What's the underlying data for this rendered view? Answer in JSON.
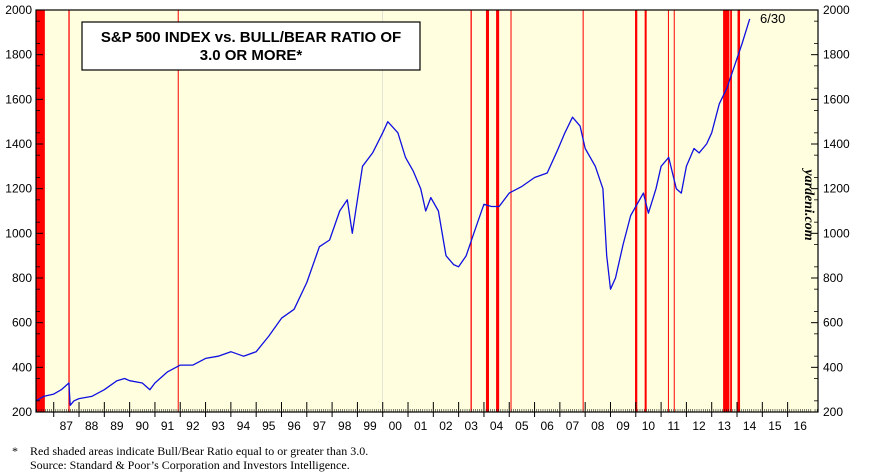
{
  "chart_data": {
    "type": "line",
    "title_line1": "S&P 500 INDEX vs. BULL/BEAR RATIO OF",
    "title_line2": "3.0 OR MORE*",
    "corner_label": "6/30",
    "watermark": "yardeni.com",
    "ylim": [
      200,
      2000
    ],
    "yticks": [
      200,
      400,
      600,
      800,
      1000,
      1200,
      1400,
      1600,
      1800,
      2000
    ],
    "xlim": [
      1986.3,
      2017.2
    ],
    "x_tick_labels": [
      "87",
      "88",
      "89",
      "90",
      "91",
      "92",
      "93",
      "94",
      "95",
      "96",
      "97",
      "98",
      "99",
      "00",
      "01",
      "02",
      "03",
      "04",
      "05",
      "06",
      "07",
      "08",
      "09",
      "10",
      "11",
      "12",
      "13",
      "14",
      "15",
      "16"
    ],
    "x_tick_positions": [
      1987,
      1988,
      1989,
      1990,
      1991,
      1992,
      1993,
      1994,
      1995,
      1996,
      1997,
      1998,
      1999,
      2000,
      2001,
      2002,
      2003,
      2004,
      2005,
      2006,
      2007,
      2008,
      2009,
      2010,
      2011,
      2012,
      2013,
      2014,
      2015,
      2016
    ],
    "shaded_periods": [
      [
        1986.3,
        1986.65
      ],
      [
        1987.58,
        1987.63
      ],
      [
        1991.9,
        1991.94
      ],
      [
        2003.47,
        2003.52
      ],
      [
        2004.08,
        2004.2
      ],
      [
        2004.48,
        2004.6
      ],
      [
        2005.05,
        2005.09
      ],
      [
        2007.9,
        2007.94
      ],
      [
        2009.97,
        2010.06
      ],
      [
        2010.35,
        2010.43
      ],
      [
        2011.27,
        2011.3
      ],
      [
        2011.5,
        2011.53
      ],
      [
        2013.45,
        2013.7
      ],
      [
        2013.73,
        2013.8
      ],
      [
        2014.02,
        2014.12
      ]
    ],
    "series": [
      {
        "name": "S&P 500 Index",
        "x": [
          1986.3,
          1986.6,
          1987.0,
          1987.3,
          1987.6,
          1987.65,
          1987.8,
          1988.0,
          1988.5,
          1989.0,
          1989.5,
          1989.8,
          1990.0,
          1990.5,
          1990.8,
          1991.0,
          1991.5,
          1992.0,
          1992.5,
          1993.0,
          1993.5,
          1994.0,
          1994.5,
          1995.0,
          1995.5,
          1996.0,
          1996.5,
          1997.0,
          1997.5,
          1997.9,
          1998.3,
          1998.6,
          1998.8,
          1999.2,
          1999.6,
          2000.0,
          2000.2,
          2000.6,
          2000.9,
          2001.2,
          2001.5,
          2001.7,
          2001.9,
          2002.2,
          2002.5,
          2002.8,
          2003.0,
          2003.3,
          2003.6,
          2004.0,
          2004.3,
          2004.6,
          2005.0,
          2005.5,
          2006.0,
          2006.5,
          2006.9,
          2007.2,
          2007.5,
          2007.8,
          2008.0,
          2008.4,
          2008.7,
          2008.85,
          2009.0,
          2009.2,
          2009.5,
          2009.8,
          2010.0,
          2010.3,
          2010.5,
          2010.8,
          2011.0,
          2011.3,
          2011.6,
          2011.8,
          2012.0,
          2012.3,
          2012.5,
          2012.8,
          2013.0,
          2013.3,
          2013.6,
          2013.9,
          2014.2,
          2014.5
        ],
        "y": [
          250,
          270,
          280,
          300,
          330,
          230,
          250,
          260,
          270,
          300,
          340,
          350,
          340,
          330,
          300,
          330,
          380,
          410,
          410,
          440,
          450,
          470,
          450,
          470,
          540,
          620,
          660,
          780,
          940,
          970,
          1100,
          1150,
          1000,
          1300,
          1360,
          1450,
          1500,
          1450,
          1340,
          1280,
          1200,
          1100,
          1160,
          1100,
          900,
          860,
          850,
          900,
          1000,
          1130,
          1120,
          1120,
          1180,
          1210,
          1250,
          1270,
          1370,
          1450,
          1520,
          1480,
          1380,
          1300,
          1200,
          900,
          750,
          800,
          950,
          1080,
          1120,
          1180,
          1090,
          1200,
          1300,
          1340,
          1200,
          1180,
          1300,
          1380,
          1360,
          1400,
          1450,
          1580,
          1650,
          1750,
          1850,
          1960
        ]
      }
    ]
  },
  "footnote": {
    "marker": "*",
    "line1": "Red shaded areas indicate Bull/Bear Ratio equal to or greater than 3.0.",
    "line2": "Source: Standard & Poor’s Corporation and Investors Intelligence."
  }
}
